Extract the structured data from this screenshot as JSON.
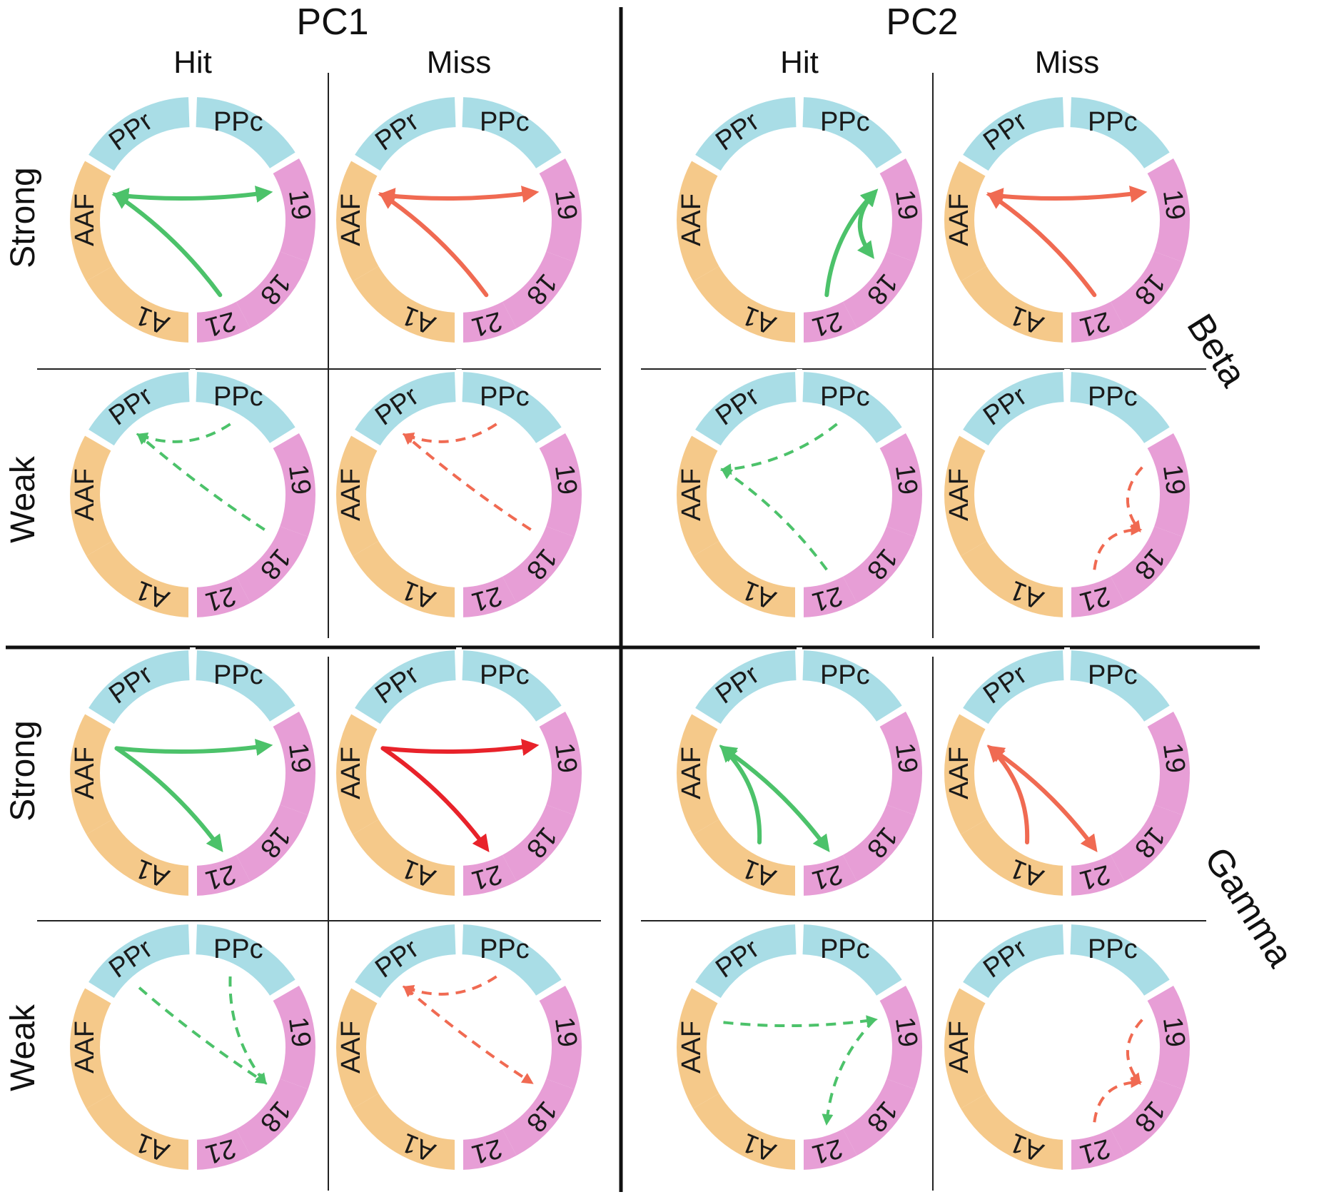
{
  "figure": {
    "pc_labels": [
      "PC1",
      "PC2"
    ],
    "column_labels": [
      "Hit",
      "Miss",
      "Hit",
      "Miss"
    ],
    "strength_labels": [
      "Strong",
      "Weak",
      "Strong",
      "Weak"
    ],
    "band_labels": [
      "Beta",
      "Gamma"
    ]
  },
  "regions": [
    {
      "label": "PPc",
      "color": "#a9dde6"
    },
    {
      "label": "19",
      "color": "#e79ed6"
    },
    {
      "label": "18",
      "color": "#e79ed6"
    },
    {
      "label": "21",
      "color": "#e79ed6"
    },
    {
      "label": "A1",
      "color": "#f5c98a"
    },
    {
      "label": "AAF",
      "color": "#f5c98a"
    },
    {
      "label": "PPr",
      "color": "#a9dde6"
    }
  ],
  "colors": {
    "hit": "#4cc26a",
    "miss": "#f06a52",
    "miss_strong_gamma_pc1": "#e8222a",
    "divider": "#111111"
  },
  "panels": [
    {
      "band": "Beta",
      "pc": "PC1",
      "outcome": "Hit",
      "strength": "Strong",
      "color": "hit",
      "dashed": false,
      "connections": [
        {
          "from": "AAF",
          "to": "19",
          "bidirectional": true
        },
        {
          "from": "21",
          "to": "AAF"
        }
      ]
    },
    {
      "band": "Beta",
      "pc": "PC1",
      "outcome": "Miss",
      "strength": "Strong",
      "color": "miss",
      "dashed": false,
      "connections": [
        {
          "from": "AAF",
          "to": "19",
          "bidirectional": true
        },
        {
          "from": "21",
          "to": "AAF"
        }
      ]
    },
    {
      "band": "Beta",
      "pc": "PC2",
      "outcome": "Hit",
      "strength": "Strong",
      "color": "hit",
      "dashed": false,
      "connections": [
        {
          "from": "21",
          "to": "19"
        },
        {
          "from": "19",
          "to": "18",
          "bidirectional": true
        }
      ]
    },
    {
      "band": "Beta",
      "pc": "PC2",
      "outcome": "Miss",
      "strength": "Strong",
      "color": "miss",
      "dashed": false,
      "connections": [
        {
          "from": "AAF",
          "to": "19",
          "bidirectional": true
        },
        {
          "from": "21",
          "to": "AAF"
        }
      ]
    },
    {
      "band": "Beta",
      "pc": "PC1",
      "outcome": "Hit",
      "strength": "Weak",
      "color": "hit",
      "dashed": true,
      "connections": [
        {
          "from": "PPc",
          "to": "PPr"
        },
        {
          "from": "18",
          "to": "PPr"
        }
      ]
    },
    {
      "band": "Beta",
      "pc": "PC1",
      "outcome": "Miss",
      "strength": "Weak",
      "color": "miss",
      "dashed": true,
      "connections": [
        {
          "from": "PPc",
          "to": "PPr"
        },
        {
          "from": "18",
          "to": "PPr"
        }
      ]
    },
    {
      "band": "Beta",
      "pc": "PC2",
      "outcome": "Hit",
      "strength": "Weak",
      "color": "hit",
      "dashed": true,
      "connections": [
        {
          "from": "PPc",
          "to": "AAF"
        },
        {
          "from": "21",
          "to": "AAF"
        }
      ]
    },
    {
      "band": "Beta",
      "pc": "PC2",
      "outcome": "Miss",
      "strength": "Weak",
      "color": "miss",
      "dashed": true,
      "connections": [
        {
          "from": "19",
          "to": "18"
        },
        {
          "from": "21",
          "to": "18"
        }
      ]
    },
    {
      "band": "Gamma",
      "pc": "PC1",
      "outcome": "Hit",
      "strength": "Strong",
      "color": "hit",
      "dashed": false,
      "connections": [
        {
          "from": "AAF",
          "to": "19"
        },
        {
          "from": "AAF",
          "to": "21"
        }
      ]
    },
    {
      "band": "Gamma",
      "pc": "PC1",
      "outcome": "Miss",
      "strength": "Strong",
      "color": "miss_strong_gamma_pc1",
      "dashed": false,
      "connections": [
        {
          "from": "AAF",
          "to": "19"
        },
        {
          "from": "AAF",
          "to": "21"
        }
      ]
    },
    {
      "band": "Gamma",
      "pc": "PC2",
      "outcome": "Hit",
      "strength": "Strong",
      "color": "hit",
      "dashed": false,
      "connections": [
        {
          "from": "AAF",
          "to": "21",
          "bidirectional": true
        },
        {
          "from": "A1",
          "to": "AAF"
        }
      ]
    },
    {
      "band": "Gamma",
      "pc": "PC2",
      "outcome": "Miss",
      "strength": "Strong",
      "color": "miss",
      "dashed": false,
      "connections": [
        {
          "from": "AAF",
          "to": "21",
          "bidirectional": true
        },
        {
          "from": "A1",
          "to": "AAF"
        }
      ]
    },
    {
      "band": "Gamma",
      "pc": "PC1",
      "outcome": "Hit",
      "strength": "Weak",
      "color": "hit",
      "dashed": true,
      "connections": [
        {
          "from": "PPr",
          "to": "18"
        },
        {
          "from": "PPc",
          "to": "18"
        }
      ]
    },
    {
      "band": "Gamma",
      "pc": "PC1",
      "outcome": "Miss",
      "strength": "Weak",
      "color": "miss",
      "dashed": true,
      "connections": [
        {
          "from": "PPc",
          "to": "PPr"
        },
        {
          "from": "PPr",
          "to": "18",
          "bidirectional": true
        }
      ]
    },
    {
      "band": "Gamma",
      "pc": "PC2",
      "outcome": "Hit",
      "strength": "Weak",
      "color": "hit",
      "dashed": true,
      "connections": [
        {
          "from": "AAF",
          "to": "19"
        },
        {
          "from": "19",
          "to": "21"
        }
      ]
    },
    {
      "band": "Gamma",
      "pc": "PC2",
      "outcome": "Miss",
      "strength": "Weak",
      "color": "miss",
      "dashed": true,
      "connections": [
        {
          "from": "19",
          "to": "18"
        },
        {
          "from": "21",
          "to": "18"
        }
      ]
    }
  ]
}
